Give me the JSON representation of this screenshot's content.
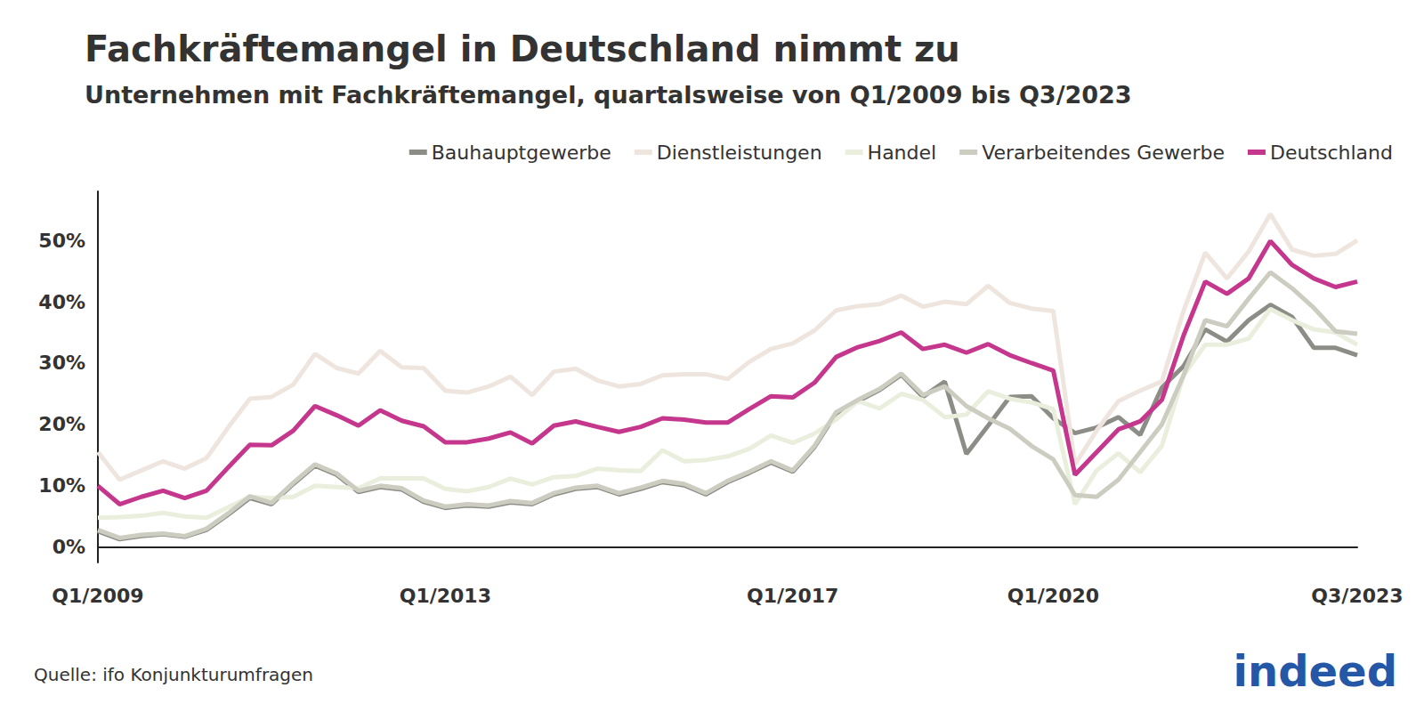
{
  "chart_data": {
    "type": "line",
    "title": "Fachkräftemangel in Deutschland nimmt zu",
    "subtitle": "Unternehmen mit Fachkräftemangel, quartalsweise von Q1/2009 bis Q3/2023",
    "source": "Quelle: ifo Konjunkturumfragen",
    "logo": "indeed",
    "categories": [
      "Q1/2009",
      null,
      null,
      null,
      null,
      null,
      null,
      null,
      null,
      null,
      null,
      null,
      null,
      null,
      null,
      null,
      "Q1/2013",
      null,
      null,
      null,
      null,
      null,
      null,
      null,
      null,
      null,
      null,
      null,
      null,
      null,
      null,
      null,
      "Q1/2017",
      null,
      null,
      null,
      null,
      null,
      null,
      null,
      null,
      null,
      null,
      null,
      "Q1/2020",
      null,
      null,
      null,
      null,
      null,
      null,
      null,
      null,
      null,
      null,
      null,
      null,
      null,
      "Q3/2023"
    ],
    "series": [
      {
        "name": "Bauhauptgewerbe",
        "color": "#8c8d86",
        "values": [
          2.6,
          1.3,
          1.8,
          2.1,
          1.7,
          2.8,
          5.3,
          8,
          7,
          10.3,
          13.3,
          11.8,
          9.0,
          9.8,
          9.4,
          7.4,
          6.4,
          6.8,
          6.6,
          7.3,
          7.0,
          8.6,
          9.5,
          9.8,
          8.6,
          9.5,
          10.6,
          10.1,
          8.6,
          10.6,
          12.1,
          13.8,
          12.3,
          16.3,
          21.8,
          23.8,
          25.6,
          28.1,
          24.5,
          27,
          15.2,
          19.8,
          24.5,
          24.6,
          21,
          18.6,
          19.5,
          21.2,
          18.3,
          26,
          29.5,
          35.5,
          33.5,
          37,
          39.5,
          37.5,
          32.5,
          32.5,
          31.3
        ]
      },
      {
        "name": "Dienstleistungen",
        "color": "#efe5df",
        "values": [
          15.5,
          11,
          12.5,
          14,
          12.8,
          14.5,
          19.5,
          24.2,
          24.5,
          26.5,
          31.5,
          29.2,
          28.3,
          32,
          29.3,
          29.2,
          25.5,
          25.2,
          26.2,
          27.8,
          24.8,
          28.6,
          29.1,
          27.2,
          26.2,
          26.6,
          28,
          28.2,
          28.2,
          27.4,
          30.2,
          32.3,
          33.2,
          35.3,
          38.6,
          39.3,
          39.6,
          41,
          39.2,
          40,
          39.6,
          42.6,
          39.8,
          38.9,
          38.5,
          13.5,
          19,
          23.8,
          25.5,
          27,
          38.5,
          48,
          43.8,
          48.2,
          54.3,
          48.5,
          47.5,
          47.8,
          50
        ]
      },
      {
        "name": "Handel",
        "color": "#eaeedd",
        "values": [
          4.8,
          4.9,
          5.1,
          5.6,
          5.0,
          4.8,
          6.5,
          8.2,
          8.0,
          8.2,
          10.0,
          9.8,
          9.6,
          11.2,
          11.2,
          11.2,
          9.5,
          9.1,
          9.8,
          11.2,
          10.2,
          11.4,
          11.6,
          12.8,
          12.5,
          12.4,
          15.8,
          14,
          14.2,
          14.8,
          16,
          18.2,
          17,
          18.5,
          20.8,
          23.8,
          22.6,
          25,
          24,
          21.2,
          21.6,
          25.4,
          24.2,
          23.6,
          22.5,
          7,
          12.5,
          15.3,
          12.2,
          16.5,
          28,
          33,
          33,
          34,
          38.8,
          37,
          35.5,
          35,
          33
        ]
      },
      {
        "name": "Verarbeitendes Gewerbe",
        "color": "#cccdc0",
        "values": [
          2.8,
          1.5,
          2,
          2.2,
          1.8,
          3,
          5.5,
          8.3,
          7.2,
          10.5,
          13.5,
          12,
          9.2,
          10,
          9.6,
          7.6,
          6.6,
          7,
          6.8,
          7.5,
          7.2,
          8.8,
          9.7,
          10,
          8.8,
          9.7,
          10.8,
          10.3,
          8.8,
          10.8,
          12.3,
          14,
          12.5,
          16.5,
          22,
          24,
          25.8,
          28.3,
          24.8,
          26.2,
          23,
          21,
          19.3,
          16.5,
          14.3,
          8.5,
          8.2,
          11,
          15.5,
          20,
          28,
          37,
          36,
          40.5,
          44.8,
          42.2,
          39,
          35.2,
          34.8
        ]
      },
      {
        "name": "Deutschland",
        "color": "#c5378d",
        "values": [
          10,
          7,
          8.2,
          9.2,
          8,
          9.2,
          13,
          16.7,
          16.6,
          19,
          23,
          21.5,
          19.8,
          22.3,
          20.6,
          19.7,
          17.1,
          17.1,
          17.7,
          18.7,
          16.9,
          19.8,
          20.5,
          19.6,
          18.8,
          19.6,
          21,
          20.8,
          20.3,
          20.3,
          22.5,
          24.6,
          24.4,
          26.8,
          31,
          32.6,
          33.6,
          35,
          32.3,
          33,
          31.7,
          33.1,
          31.3,
          30,
          28.8,
          11.8,
          15.5,
          19.2,
          20.5,
          24,
          34.5,
          43.3,
          41.3,
          43.8,
          49.9,
          46,
          43.8,
          42.4,
          43.3
        ]
      }
    ],
    "ylim": [
      -2.5,
      58
    ],
    "yticks": [
      {
        "value": 0,
        "label": "0%"
      },
      {
        "value": 10,
        "label": "10%"
      },
      {
        "value": 20,
        "label": "20%"
      },
      {
        "value": 30,
        "label": "30%"
      },
      {
        "value": 40,
        "label": "40%"
      },
      {
        "value": 50,
        "label": "50%"
      }
    ],
    "grid": false,
    "legend": "top-right"
  }
}
